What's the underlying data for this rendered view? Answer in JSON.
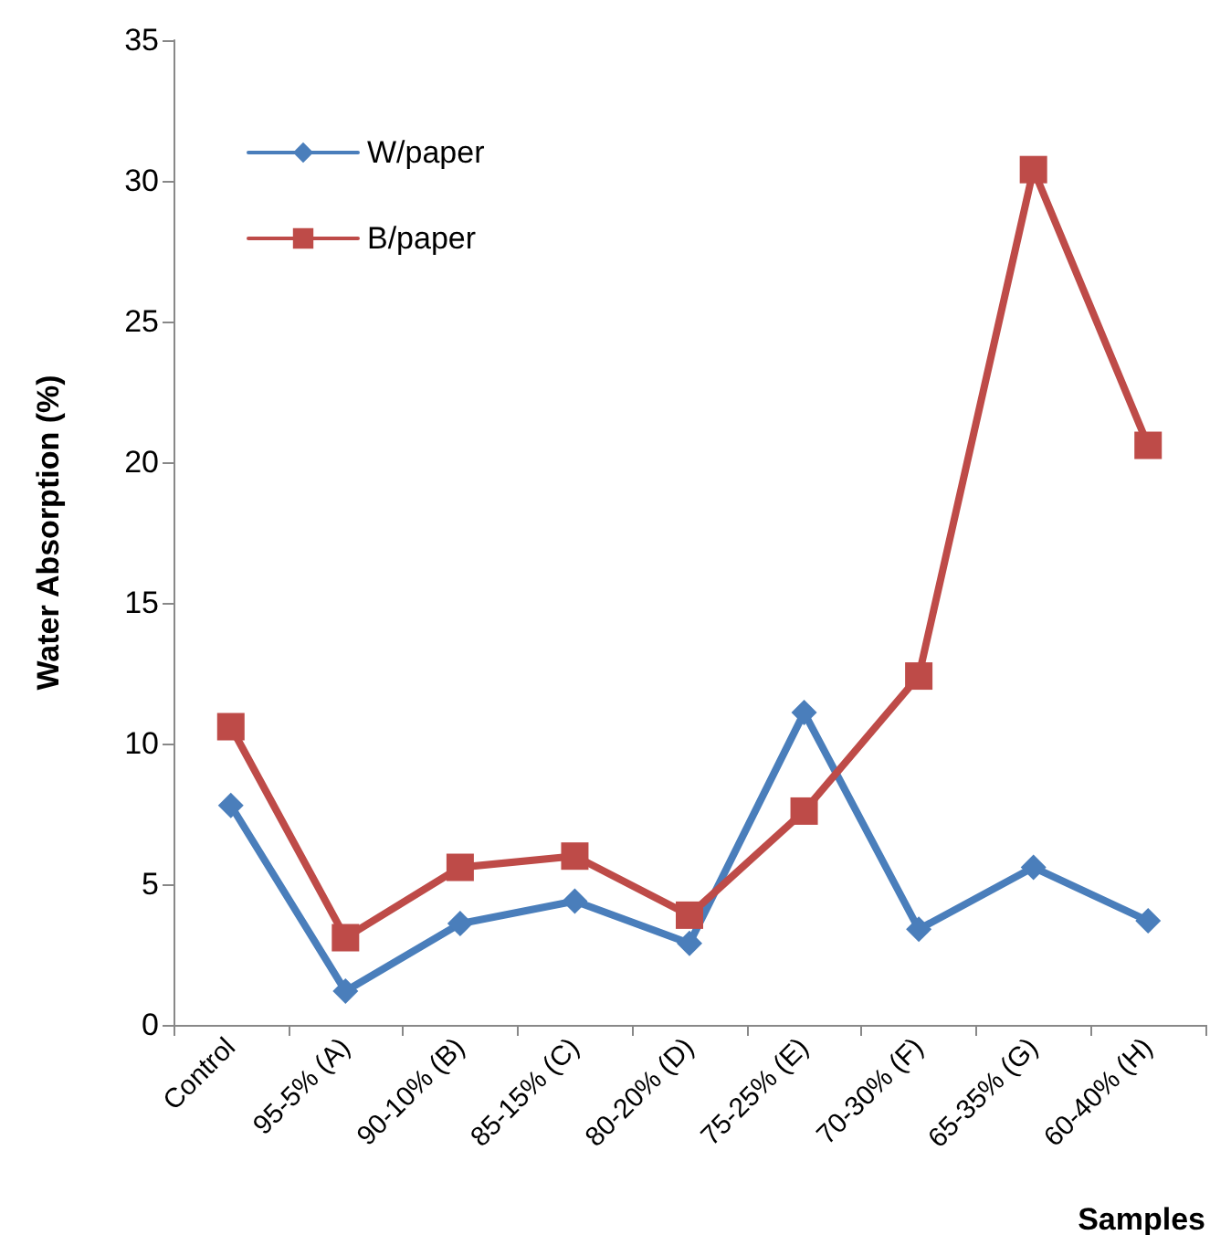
{
  "chart_data": {
    "type": "line",
    "xlabel": "Samples",
    "ylabel": "Water Absorption (%)",
    "categories": [
      "Control",
      "95-5% (A)",
      "90-10% (B)",
      "85-15% (C)",
      "80-20% (D)",
      "75-25% (E)",
      "70-30% (F)",
      "65-35% (G)",
      "60-40% (H)"
    ],
    "series": [
      {
        "name": "W/paper",
        "color": "#4a7ebb",
        "marker": "diamond",
        "values": [
          7.8,
          1.2,
          3.6,
          4.4,
          2.9,
          11.1,
          3.4,
          5.6,
          3.7
        ]
      },
      {
        "name": "B/paper",
        "color": "#be4b48",
        "marker": "square",
        "values": [
          10.6,
          3.1,
          5.6,
          6.0,
          3.9,
          7.6,
          12.4,
          30.4,
          20.6
        ]
      }
    ],
    "ylim": [
      0,
      35
    ],
    "yticks": [
      0,
      5,
      10,
      15,
      20,
      25,
      30,
      35
    ],
    "grid": false,
    "legend": "top left",
    "line_style": "solid"
  }
}
